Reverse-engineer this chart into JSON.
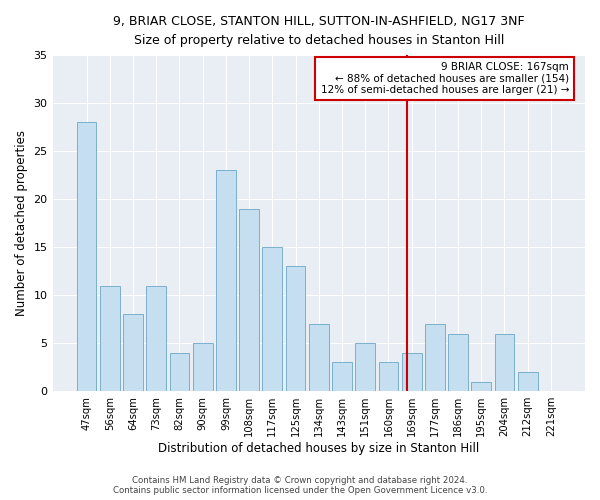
{
  "title_line1": "9, BRIAR CLOSE, STANTON HILL, SUTTON-IN-ASHFIELD, NG17 3NF",
  "title_line2": "Size of property relative to detached houses in Stanton Hill",
  "xlabel": "Distribution of detached houses by size in Stanton Hill",
  "ylabel": "Number of detached properties",
  "categories": [
    "47sqm",
    "56sqm",
    "64sqm",
    "73sqm",
    "82sqm",
    "90sqm",
    "99sqm",
    "108sqm",
    "117sqm",
    "125sqm",
    "134sqm",
    "143sqm",
    "151sqm",
    "160sqm",
    "169sqm",
    "177sqm",
    "186sqm",
    "195sqm",
    "204sqm",
    "212sqm",
    "221sqm"
  ],
  "values": [
    28,
    11,
    8,
    11,
    4,
    5,
    23,
    19,
    15,
    13,
    7,
    3,
    5,
    3,
    4,
    7,
    6,
    1,
    6,
    2,
    0
  ],
  "bar_color": "#c5dff0",
  "bar_edgecolor": "#7ab0cc",
  "vline_color": "#cc0000",
  "annotation_title": "9 BRIAR CLOSE: 167sqm",
  "annotation_line1": "← 88% of detached houses are smaller (154)",
  "annotation_line2": "12% of semi-detached houses are larger (21) →",
  "annotation_box_color": "#cc0000",
  "ylim": [
    0,
    35
  ],
  "yticks": [
    0,
    5,
    10,
    15,
    20,
    25,
    30,
    35
  ],
  "background_color": "#e8eef4",
  "footer_line1": "Contains HM Land Registry data © Crown copyright and database right 2024.",
  "footer_line2": "Contains public sector information licensed under the Open Government Licence v3.0."
}
